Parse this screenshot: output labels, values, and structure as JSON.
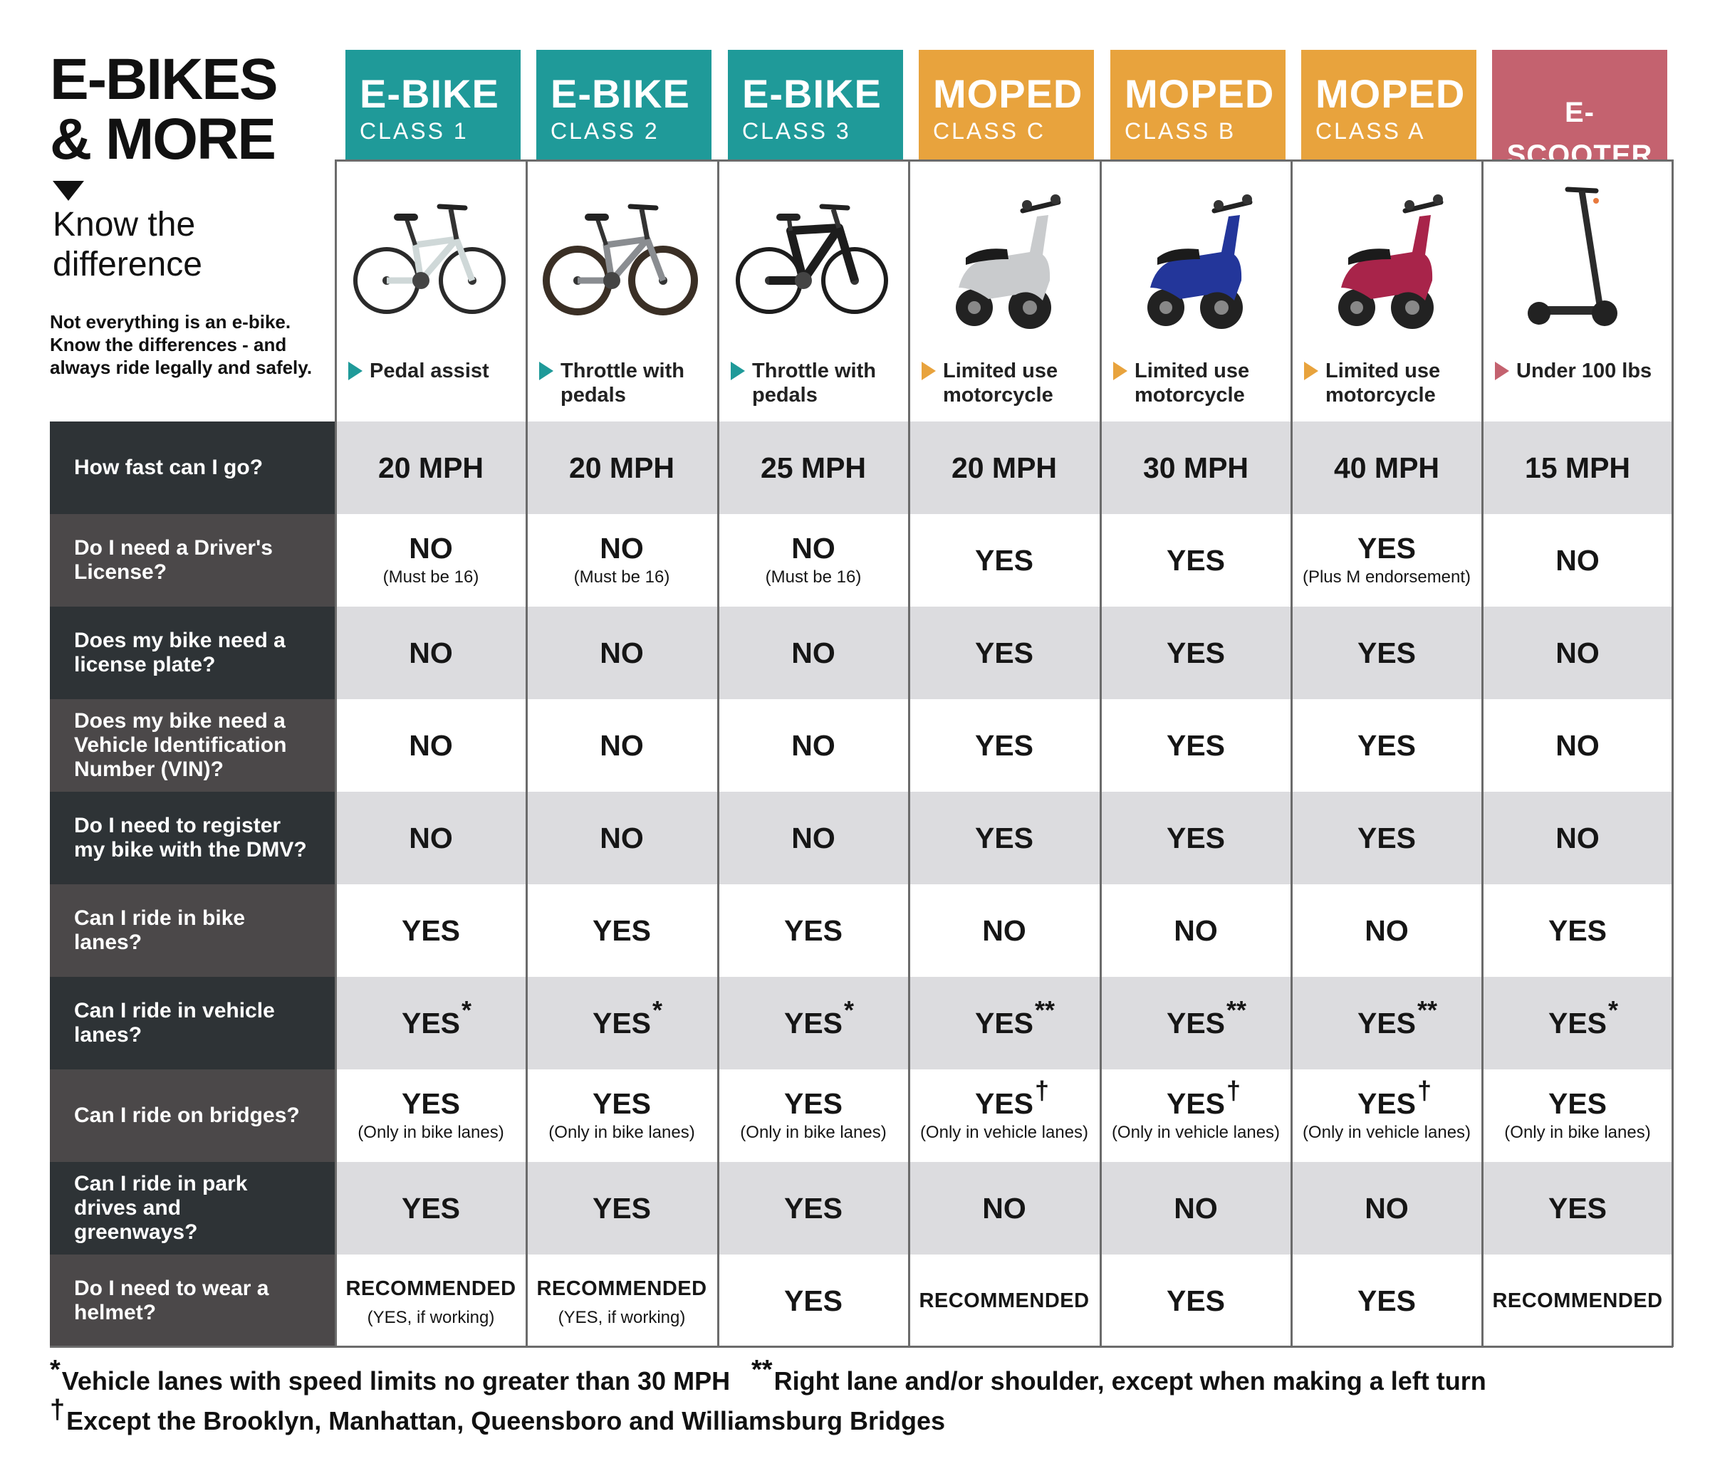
{
  "title_line1": "E-BIKES",
  "title_line2": "& MORE",
  "subtitle": "Know the difference",
  "intro_text": "Not everything is an e-bike. Know the differences - and always ride legally and safely.",
  "colors": {
    "ebike": "#1f9a99",
    "moped": "#e8a33d",
    "scooter": "#c4626f",
    "question_dark": "#2e3336",
    "question_light": "#4b4849",
    "row_shade": "#dcdcdf",
    "grid": "#6b6b6b"
  },
  "vehicles": [
    {
      "title": "E-BIKE",
      "subtitle": "CLASS 1",
      "group": "ebike",
      "icon": "e-bike-class-1-icon",
      "description": "Pedal assist"
    },
    {
      "title": "E-BIKE",
      "subtitle": "CLASS 2",
      "group": "ebike",
      "icon": "e-bike-class-2-icon",
      "description": "Throttle with pedals"
    },
    {
      "title": "E-BIKE",
      "subtitle": "CLASS 3",
      "group": "ebike",
      "icon": "e-bike-class-3-icon",
      "description": "Throttle with pedals"
    },
    {
      "title": "MOPED",
      "subtitle": "CLASS C",
      "group": "moped",
      "icon": "moped-class-c-icon",
      "description": "Limited use motorcycle"
    },
    {
      "title": "MOPED",
      "subtitle": "CLASS B",
      "group": "moped",
      "icon": "moped-class-b-icon",
      "description": "Limited use motorcycle"
    },
    {
      "title": "MOPED",
      "subtitle": "CLASS A",
      "group": "moped",
      "icon": "moped-class-a-icon",
      "description": "Limited use motorcycle"
    },
    {
      "title": "E-SCOOTER",
      "subtitle": "",
      "group": "scooter",
      "icon": "e-scooter-icon",
      "description": "Under 100 lbs"
    }
  ],
  "rows": [
    {
      "question": "How fast can I go?",
      "answers": [
        {
          "main": "20 MPH"
        },
        {
          "main": "20 MPH"
        },
        {
          "main": "25 MPH"
        },
        {
          "main": "20 MPH"
        },
        {
          "main": "30 MPH"
        },
        {
          "main": "40 MPH"
        },
        {
          "main": "15 MPH"
        }
      ]
    },
    {
      "question": "Do I need a Driver's License?",
      "answers": [
        {
          "main": "NO",
          "note": "(Must be 16)"
        },
        {
          "main": "NO",
          "note": "(Must be 16)"
        },
        {
          "main": "NO",
          "note": "(Must be 16)"
        },
        {
          "main": "YES"
        },
        {
          "main": "YES"
        },
        {
          "main": "YES",
          "note": "(Plus M endorsement)"
        },
        {
          "main": "NO"
        }
      ]
    },
    {
      "question": "Does my bike need a license plate?",
      "answers": [
        {
          "main": "NO"
        },
        {
          "main": "NO"
        },
        {
          "main": "NO"
        },
        {
          "main": "YES"
        },
        {
          "main": "YES"
        },
        {
          "main": "YES"
        },
        {
          "main": "NO"
        }
      ]
    },
    {
      "question": "Does my bike need a Vehicle Identification Number (VIN)?",
      "answers": [
        {
          "main": "NO"
        },
        {
          "main": "NO"
        },
        {
          "main": "NO"
        },
        {
          "main": "YES"
        },
        {
          "main": "YES"
        },
        {
          "main": "YES"
        },
        {
          "main": "NO"
        }
      ]
    },
    {
      "question": "Do I need to register my bike with the DMV?",
      "answers": [
        {
          "main": "NO"
        },
        {
          "main": "NO"
        },
        {
          "main": "NO"
        },
        {
          "main": "YES"
        },
        {
          "main": "YES"
        },
        {
          "main": "YES"
        },
        {
          "main": "NO"
        }
      ]
    },
    {
      "question": "Can I ride in bike lanes?",
      "answers": [
        {
          "main": "YES"
        },
        {
          "main": "YES"
        },
        {
          "main": "YES"
        },
        {
          "main": "NO"
        },
        {
          "main": "NO"
        },
        {
          "main": "NO"
        },
        {
          "main": "YES"
        }
      ]
    },
    {
      "question": "Can I ride in vehicle lanes?",
      "answers": [
        {
          "main": "YES",
          "mark": "*"
        },
        {
          "main": "YES",
          "mark": "*"
        },
        {
          "main": "YES",
          "mark": "*"
        },
        {
          "main": "YES",
          "mark": "**"
        },
        {
          "main": "YES",
          "mark": "**"
        },
        {
          "main": "YES",
          "mark": "**"
        },
        {
          "main": "YES",
          "mark": "*"
        }
      ]
    },
    {
      "question": "Can I ride on bridges?",
      "answers": [
        {
          "main": "YES",
          "note": "(Only in bike lanes)"
        },
        {
          "main": "YES",
          "note": "(Only in bike lanes)"
        },
        {
          "main": "YES",
          "note": "(Only in bike lanes)"
        },
        {
          "main": "YES",
          "mark": "†",
          "note": "(Only in vehicle lanes)"
        },
        {
          "main": "YES",
          "mark": "†",
          "note": "(Only in vehicle lanes)"
        },
        {
          "main": "YES",
          "mark": "†",
          "note": "(Only in vehicle lanes)"
        },
        {
          "main": "YES",
          "note": "(Only in bike lanes)"
        }
      ]
    },
    {
      "question": "Can I ride in park drives and greenways?",
      "answers": [
        {
          "main": "YES"
        },
        {
          "main": "YES"
        },
        {
          "main": "YES"
        },
        {
          "main": "NO"
        },
        {
          "main": "NO"
        },
        {
          "main": "NO"
        },
        {
          "main": "YES"
        }
      ]
    },
    {
      "question": "Do I need to wear a helmet?",
      "answers": [
        {
          "main": "RECOMMENDED",
          "note": "(YES, if working)"
        },
        {
          "main": "RECOMMENDED",
          "note": "(YES, if working)"
        },
        {
          "main": "YES"
        },
        {
          "main": "RECOMMENDED"
        },
        {
          "main": "YES"
        },
        {
          "main": "YES"
        },
        {
          "main": "RECOMMENDED"
        }
      ]
    }
  ],
  "footnotes": [
    {
      "symbol": "*",
      "text": "Vehicle lanes with speed limits no greater than 30 MPH"
    },
    {
      "symbol": "**",
      "text": "Right lane and/or shoulder, except when making a left turn"
    },
    {
      "symbol": "†",
      "text": "Except the Brooklyn, Manhattan, Queensboro and Williamsburg Bridges"
    }
  ]
}
